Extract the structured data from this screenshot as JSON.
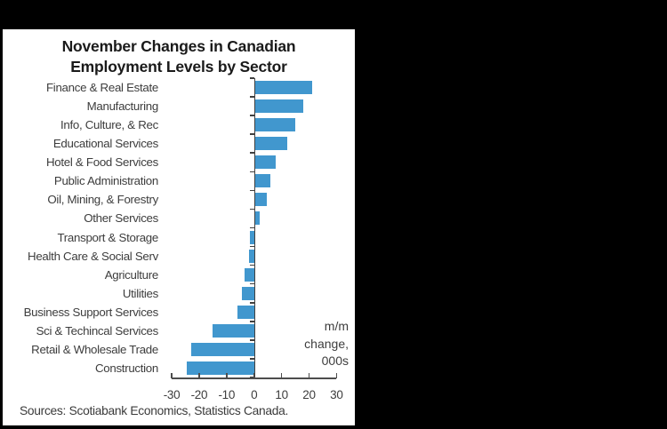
{
  "window": {
    "background_color": "#000000",
    "panel_color": "#ffffff"
  },
  "chart_data": {
    "type": "bar",
    "orientation": "horizontal",
    "title_line1": "November Changes in Canadian",
    "title_line2": "Employment Levels by Sector",
    "categories": [
      "Finance & Real Estate",
      "Manufacturing",
      "Info, Culture, & Rec",
      "Educational Services",
      "Hotel & Food Services",
      "Public Administration",
      "Oil, Mining, & Forestry",
      "Other Services",
      "Transport & Storage",
      "Health Care & Social Serv",
      "Agriculture",
      "Utilities",
      "Business Support Services",
      "Sci & Techincal Services",
      "Retail & Wholesale Trade",
      "Construction"
    ],
    "values": [
      21,
      18,
      15,
      12,
      8,
      6,
      4.5,
      2,
      -1.5,
      -2,
      -3.5,
      -4.5,
      -6,
      -15,
      -23,
      -24.5
    ],
    "xlim": [
      -30,
      30
    ],
    "x_ticks": [
      -30,
      -20,
      -10,
      0,
      10,
      20,
      30
    ],
    "grid": "off",
    "legend": "none",
    "annotation": [
      "m/m",
      "change,",
      "000s"
    ],
    "units": "m/m change, 000s",
    "source": "Sources: Scotiabank Economics, Statistics Canada.",
    "bar_color": "#4197ce",
    "axis_color": "#4d4d4d",
    "title_color": "#1a1a1a",
    "text_color": "#3d3d3d"
  }
}
